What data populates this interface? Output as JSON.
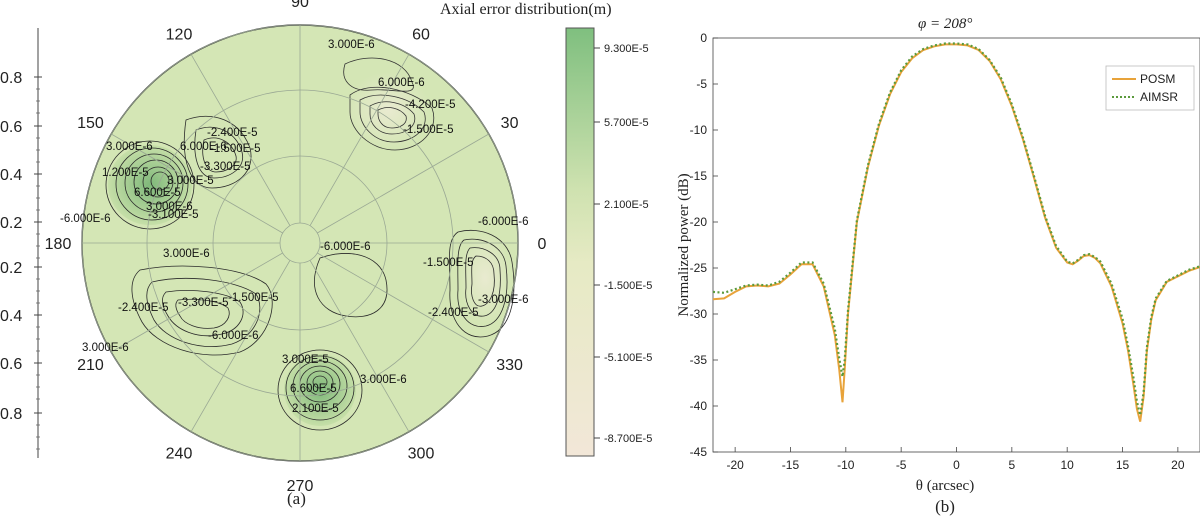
{
  "chart_data": [
    {
      "type": "contour",
      "panel_label": "(a)",
      "title": "Axial error distribution(m)",
      "angle_labels": [
        "0",
        "30",
        "60",
        "90",
        "120",
        "150",
        "180",
        "210",
        "240",
        "270",
        "300",
        "330"
      ],
      "left_axis_ticks": [
        "0.8",
        "0.6",
        "0.4",
        "0.2",
        "0.2",
        "0.4",
        "0.6",
        "0.8"
      ],
      "colorbar": {
        "ticks": [
          "9.300E-5",
          "5.700E-5",
          "2.100E-5",
          "-1.500E-5",
          "-5.100E-5",
          "-8.700E-5"
        ],
        "range": [
          -9.3e-05,
          0.000105
        ],
        "color_low": "#f2e7d8",
        "color_mid": "#cfe2b0",
        "color_high": "#7fbf7f"
      },
      "background_color": "#d4e6b5",
      "contour_labels": [
        "3.000E-6",
        "6.000E-6",
        "-4.200E-5",
        "-1.500E-5",
        "-2.400E-5",
        "-1.500E-5",
        "-3.300E-5",
        "6.000E-6",
        "3.000E-6",
        "1.200E-5",
        "6.600E-5",
        "3.000E-5",
        "3.000E-6",
        "-6.000E-6",
        "-3.100E-5",
        "3.000E-6",
        "-6.000E-6",
        "-6.000E-6",
        "-1.500E-5",
        "-3.000E-6",
        "-2.400E-5",
        "-2.400E-5",
        "-3.300E-5",
        "-1.500E-5",
        "-6.000E-6",
        "3.000E-6",
        "3.000E-5",
        "6.600E-5",
        "2.100E-5",
        "3.000E-6"
      ]
    },
    {
      "type": "line",
      "panel_label": "(b)",
      "title": "φ = 208°",
      "xlabel": "θ (arcsec)",
      "ylabel": "Normalized power (dB)",
      "xlim": [
        -22,
        22
      ],
      "ylim": [
        -45,
        0
      ],
      "xticks": [
        "-20",
        "-15",
        "-10",
        "-5",
        "0",
        "5",
        "10",
        "15",
        "20"
      ],
      "yticks": [
        "0",
        "-5",
        "-10",
        "-15",
        "-20",
        "-25",
        "-30",
        "-35",
        "-40",
        "-45"
      ],
      "legend_position": "top-right",
      "series": [
        {
          "name": "POSM",
          "color": "#e8a33a",
          "style": "solid",
          "x": [
            -22,
            -21,
            -20,
            -19,
            -18,
            -17,
            -16,
            -15,
            -14,
            -13,
            -12,
            -11,
            -10.6,
            -10.3,
            -10.1,
            -9.8,
            -9,
            -8,
            -7,
            -6,
            -5,
            -4,
            -3,
            -2,
            -1,
            0,
            1,
            2,
            3,
            4,
            5,
            6,
            7,
            8,
            9,
            10,
            10.5,
            11,
            11.5,
            12,
            12.5,
            13,
            14,
            15,
            15.5,
            16,
            16.3,
            16.6,
            16.9,
            17.2,
            17.6,
            18,
            19,
            20,
            21,
            22
          ],
          "y": [
            -28.4,
            -28.3,
            -27.6,
            -27,
            -26.9,
            -27,
            -26.7,
            -25.7,
            -24.6,
            -24.6,
            -27,
            -32.3,
            -36,
            -39.6,
            -36,
            -30,
            -20,
            -14,
            -9.5,
            -6.1,
            -3.7,
            -2.2,
            -1.3,
            -0.9,
            -0.7,
            -0.7,
            -0.8,
            -1.3,
            -2.5,
            -4.5,
            -7.4,
            -11,
            -15.2,
            -19.5,
            -22.8,
            -24.4,
            -24.6,
            -24.2,
            -23.7,
            -23.6,
            -23.9,
            -24.5,
            -27,
            -31,
            -34,
            -37.8,
            -40.3,
            -41.7,
            -39,
            -34,
            -30.6,
            -28.5,
            -26.5,
            -25.9,
            -25.3,
            -24.9
          ]
        },
        {
          "name": "AIMSR",
          "color": "#5b9a3c",
          "style": "dotted",
          "x": [
            -22,
            -21,
            -20,
            -19,
            -18,
            -17,
            -16,
            -15,
            -14,
            -13,
            -12,
            -11,
            -10.6,
            -10.3,
            -10.1,
            -9.8,
            -9,
            -8,
            -7,
            -6,
            -5,
            -4,
            -3,
            -2,
            -1,
            0,
            1,
            2,
            3,
            4,
            5,
            6,
            7,
            8,
            9,
            10,
            10.5,
            11,
            11.5,
            12,
            12.5,
            13,
            14,
            15,
            15.5,
            16,
            16.3,
            16.6,
            16.9,
            17.2,
            17.6,
            18,
            19,
            20,
            21,
            22
          ],
          "y": [
            -27.6,
            -27.7,
            -27.3,
            -26.9,
            -26.8,
            -26.9,
            -26.5,
            -25.5,
            -24.4,
            -24.4,
            -26.7,
            -31.6,
            -34.8,
            -36.8,
            -35,
            -29.6,
            -19.8,
            -13.8,
            -9.3,
            -5.9,
            -3.5,
            -2,
            -1.2,
            -0.8,
            -0.6,
            -0.6,
            -0.7,
            -1.2,
            -2.4,
            -4.3,
            -7.2,
            -10.8,
            -15,
            -19.3,
            -22.6,
            -24.3,
            -24.5,
            -24.1,
            -23.6,
            -23.5,
            -23.8,
            -24.3,
            -26.7,
            -30.5,
            -33.5,
            -37,
            -39.5,
            -41,
            -38.5,
            -33.6,
            -30.3,
            -28.3,
            -26.4,
            -25.8,
            -25.2,
            -24.8
          ]
        }
      ]
    }
  ]
}
